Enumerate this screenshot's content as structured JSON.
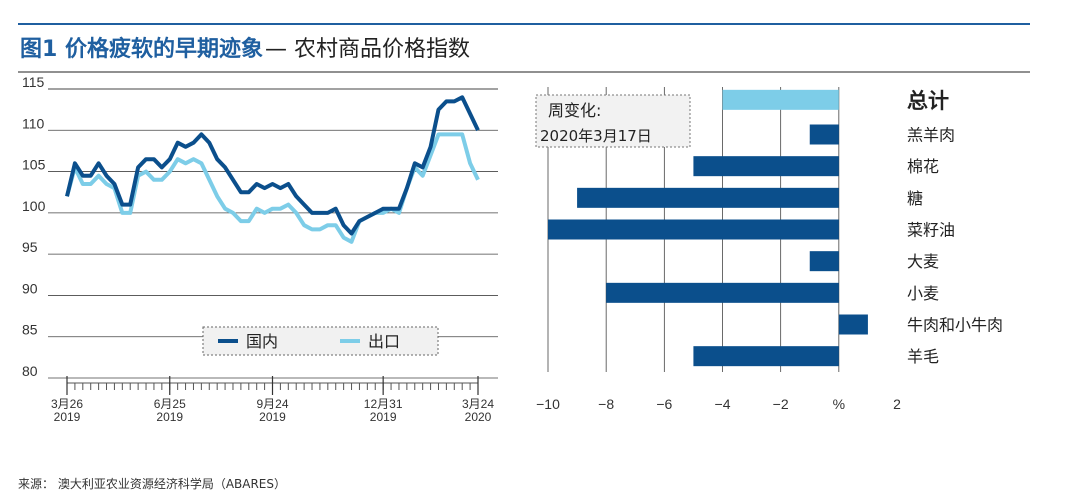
{
  "title": {
    "strong": "图1 价格疲软的早期迹象",
    "rest": "— 农村商品价格指数"
  },
  "source": "来源： 澳大利亚农业资源经济科学局（ABARES）",
  "chart_data": [
    {
      "type": "line",
      "x": [
        "2019-03-26",
        "2019-04-02",
        "2019-04-09",
        "2019-04-16",
        "2019-04-23",
        "2019-04-30",
        "2019-05-07",
        "2019-05-14",
        "2019-05-21",
        "2019-05-28",
        "2019-06-04",
        "2019-06-11",
        "2019-06-18",
        "2019-06-25",
        "2019-07-02",
        "2019-07-09",
        "2019-07-16",
        "2019-07-23",
        "2019-07-30",
        "2019-08-06",
        "2019-08-13",
        "2019-08-20",
        "2019-08-27",
        "2019-09-03",
        "2019-09-10",
        "2019-09-17",
        "2019-09-24",
        "2019-10-01",
        "2019-10-08",
        "2019-10-15",
        "2019-10-22",
        "2019-10-29",
        "2019-11-05",
        "2019-11-12",
        "2019-11-19",
        "2019-11-26",
        "2019-12-03",
        "2019-12-10",
        "2019-12-17",
        "2019-12-24",
        "2019-12-31",
        "2020-01-07",
        "2020-01-14",
        "2020-01-21",
        "2020-01-28",
        "2020-02-04",
        "2020-02-11",
        "2020-02-18",
        "2020-02-25",
        "2020-03-03",
        "2020-03-10",
        "2020-03-17",
        "2020-03-24"
      ],
      "xticks": [
        {
          "label": "3月26",
          "year": "2019",
          "x": "2019-03-26"
        },
        {
          "label": "6月25",
          "year": "2019",
          "x": "2019-06-25"
        },
        {
          "label": "9月24",
          "year": "2019",
          "x": "2019-09-24"
        },
        {
          "label": "12月31",
          "year": "2019",
          "x": "2019-12-31"
        },
        {
          "label": "3月24",
          "year": "2020",
          "x": "2020-03-24"
        }
      ],
      "ylim": [
        80,
        115
      ],
      "yticks": [
        80,
        85,
        90,
        95,
        100,
        105,
        110,
        115
      ],
      "grid": true,
      "series": [
        {
          "name": "国内",
          "color": "#0b4f8c",
          "values": [
            102,
            106,
            104.5,
            104.5,
            106,
            104.5,
            103.5,
            101,
            101,
            105.5,
            106.5,
            106.5,
            105.5,
            106.5,
            108.5,
            108,
            108.5,
            109.5,
            108.5,
            106.5,
            105.5,
            104,
            102.5,
            102.5,
            103.5,
            103,
            103.5,
            103,
            103.5,
            102,
            101,
            100,
            100,
            100,
            100.5,
            98.5,
            97.5,
            99,
            99.5,
            100,
            100.5,
            100.5,
            100.5,
            103,
            106,
            105.5,
            108,
            112.5,
            113.5,
            113.5,
            114,
            112,
            110
          ]
        },
        {
          "name": "出口",
          "color": "#7dcde8",
          "values": [
            102,
            105.5,
            103.5,
            103.5,
            104.5,
            103.5,
            103,
            100,
            100,
            104.5,
            105,
            104,
            104,
            105,
            106.5,
            106,
            106.5,
            106,
            104,
            102,
            100.5,
            100,
            99,
            99,
            100.5,
            100,
            100.5,
            100.5,
            101,
            100,
            98.5,
            98,
            98,
            98.5,
            98.5,
            97,
            96.5,
            99,
            99.5,
            100,
            100,
            100.5,
            100,
            103,
            105.5,
            104.5,
            107,
            109.5,
            109.5,
            109.5,
            109.5,
            106,
            104
          ]
        }
      ]
    },
    {
      "type": "bar",
      "orientation": "horizontal",
      "subtitle": [
        "周变化:",
        "2020年3月17日"
      ],
      "xlabel": "%",
      "xlim": [
        -10,
        2
      ],
      "xticks": [
        -10,
        -8,
        -6,
        -4,
        -2,
        0,
        2
      ],
      "categories": [
        "总计",
        "羔羊肉",
        "棉花",
        "糖",
        "菜籽油",
        "大麦",
        "小麦",
        "牛肉和小牛肉",
        "羊毛"
      ],
      "values": [
        -4,
        -1,
        -5,
        -9,
        -10,
        -1,
        -8,
        1,
        -5
      ],
      "colors": [
        "#7dcde8",
        "#0b4f8c",
        "#0b4f8c",
        "#0b4f8c",
        "#0b4f8c",
        "#0b4f8c",
        "#0b4f8c",
        "#0b4f8c",
        "#0b4f8c"
      ]
    }
  ]
}
